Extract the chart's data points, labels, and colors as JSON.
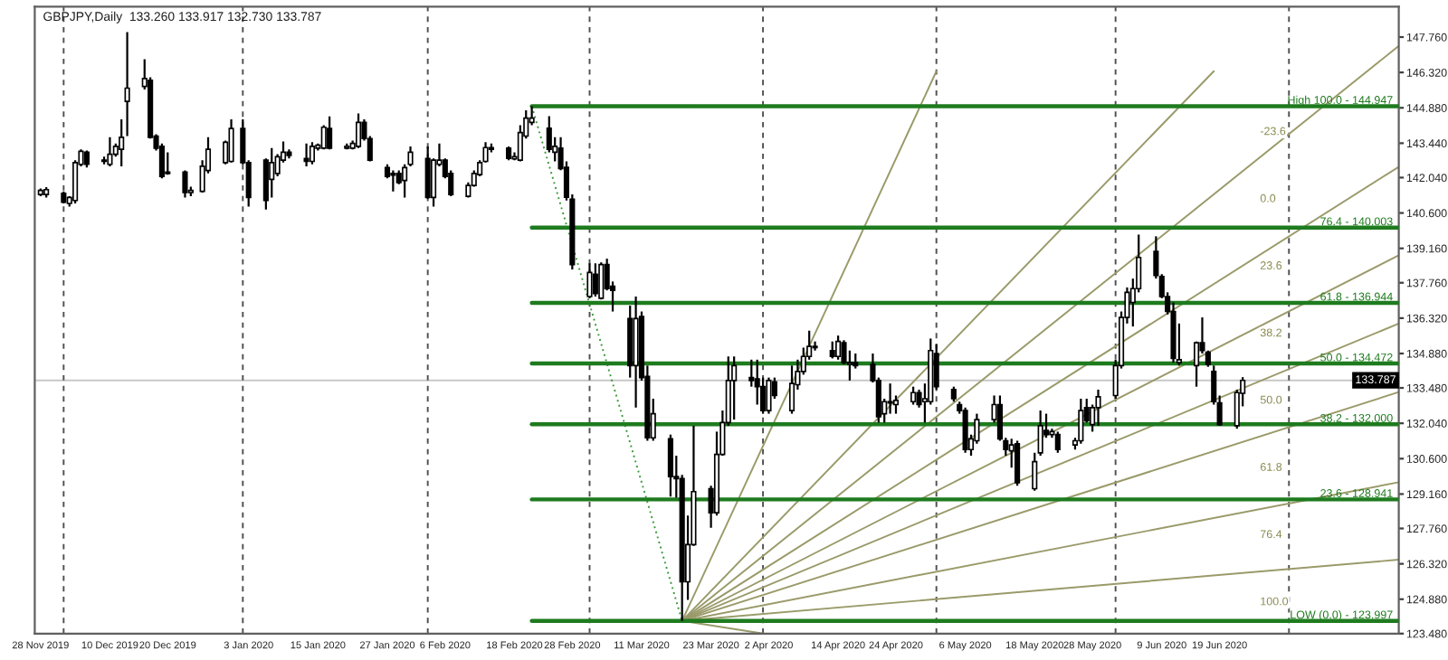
{
  "chart_data": {
    "type": "candlestick",
    "title": "GBPJPY,Daily  133.260 133.917 132.730 133.787",
    "color": "#000000",
    "x": [
      "2019-11-28",
      "2019-11-29",
      "2019-12-02",
      "2019-12-03",
      "2019-12-04",
      "2019-12-05",
      "2019-12-06",
      "2019-12-09",
      "2019-12-10",
      "2019-12-11",
      "2019-12-12",
      "2019-12-13",
      "2019-12-16",
      "2019-12-17",
      "2019-12-18",
      "2019-12-19",
      "2019-12-20",
      "2019-12-23",
      "2019-12-24",
      "2019-12-26",
      "2019-12-27",
      "2019-12-30",
      "2019-12-31",
      "2020-01-02",
      "2020-01-03",
      "2020-01-06",
      "2020-01-07",
      "2020-01-08",
      "2020-01-09",
      "2020-01-10",
      "2020-01-13",
      "2020-01-14",
      "2020-01-15",
      "2020-01-16",
      "2020-01-17",
      "2020-01-20",
      "2020-01-21",
      "2020-01-22",
      "2020-01-23",
      "2020-01-24",
      "2020-01-27",
      "2020-01-28",
      "2020-01-29",
      "2020-01-30",
      "2020-01-31",
      "2020-02-03",
      "2020-02-04",
      "2020-02-05",
      "2020-02-06",
      "2020-02-07",
      "2020-02-10",
      "2020-02-11",
      "2020-02-12",
      "2020-02-13",
      "2020-02-14",
      "2020-02-17",
      "2020-02-18",
      "2020-02-19",
      "2020-02-20",
      "2020-02-21",
      "2020-02-24",
      "2020-02-25",
      "2020-02-26",
      "2020-02-27",
      "2020-02-28",
      "2020-03-02",
      "2020-03-03",
      "2020-03-04",
      "2020-03-05",
      "2020-03-06",
      "2020-03-09",
      "2020-03-10",
      "2020-03-11",
      "2020-03-12",
      "2020-03-13",
      "2020-03-16",
      "2020-03-17",
      "2020-03-18",
      "2020-03-19",
      "2020-03-20",
      "2020-03-23",
      "2020-03-24",
      "2020-03-25",
      "2020-03-26",
      "2020-03-27",
      "2020-03-30",
      "2020-03-31",
      "2020-04-01",
      "2020-04-02",
      "2020-04-03",
      "2020-04-06",
      "2020-04-07",
      "2020-04-08",
      "2020-04-09",
      "2020-04-10",
      "2020-04-13",
      "2020-04-14",
      "2020-04-15",
      "2020-04-16",
      "2020-04-17",
      "2020-04-20",
      "2020-04-21",
      "2020-04-22",
      "2020-04-23",
      "2020-04-24",
      "2020-04-27",
      "2020-04-28",
      "2020-04-29",
      "2020-04-30",
      "2020-05-01",
      "2020-05-04",
      "2020-05-05",
      "2020-05-06",
      "2020-05-07",
      "2020-05-08",
      "2020-05-11",
      "2020-05-12",
      "2020-05-13",
      "2020-05-14",
      "2020-05-15",
      "2020-05-18",
      "2020-05-19",
      "2020-05-20",
      "2020-05-21",
      "2020-05-22",
      "2020-05-25",
      "2020-05-26",
      "2020-05-27",
      "2020-05-28",
      "2020-05-29",
      "2020-06-01",
      "2020-06-02",
      "2020-06-03",
      "2020-06-04",
      "2020-06-05",
      "2020-06-08",
      "2020-06-09",
      "2020-06-10",
      "2020-06-11",
      "2020-06-12",
      "2020-06-15",
      "2020-06-16",
      "2020-06-17",
      "2020-06-18",
      "2020-06-19",
      "2020-06-22",
      "2020-06-23"
    ],
    "ohlc": [
      [
        141.35,
        141.6,
        141.28,
        141.52
      ],
      [
        141.35,
        141.65,
        141.23,
        141.55
      ],
      [
        141.4,
        141.48,
        140.99,
        141.04
      ],
      [
        140.99,
        141.28,
        140.86,
        141.23
      ],
      [
        141.11,
        142.75,
        140.99,
        142.65
      ],
      [
        142.58,
        143.19,
        142.5,
        143.11
      ],
      [
        143.07,
        143.14,
        142.45,
        142.58
      ],
      [
        142.7,
        142.89,
        142.58,
        142.75
      ],
      [
        142.58,
        143.68,
        142.5,
        142.99
      ],
      [
        142.99,
        143.43,
        142.89,
        143.31
      ],
      [
        143.19,
        144.41,
        142.5,
        143.68
      ],
      [
        145.14,
        147.96,
        143.73,
        145.68
      ],
      [
        145.75,
        146.86,
        145.63,
        146.07
      ],
      [
        146.0,
        146.12,
        143.63,
        143.68
      ],
      [
        143.73,
        143.8,
        143.14,
        143.24
      ],
      [
        143.31,
        143.43,
        142.01,
        142.09
      ],
      [
        142.26,
        143.07,
        142.16,
        142.21
      ],
      [
        142.26,
        142.33,
        141.23,
        141.43
      ],
      [
        141.43,
        141.67,
        141.28,
        141.52
      ],
      [
        141.48,
        142.75,
        141.43,
        142.5
      ],
      [
        142.33,
        143.68,
        142.21,
        143.19
      ],
      [
        142.65,
        143.55,
        142.58,
        143.48
      ],
      [
        142.7,
        144.41,
        142.65,
        144.04
      ],
      [
        144.04,
        144.41,
        142.58,
        142.65
      ],
      [
        142.65,
        142.75,
        140.86,
        141.23
      ],
      [
        142.75,
        142.82,
        140.74,
        141.11
      ],
      [
        141.97,
        143.24,
        141.23,
        142.65
      ],
      [
        142.21,
        142.99,
        142.09,
        142.89
      ],
      [
        142.75,
        143.51,
        142.65,
        143.07
      ],
      [
        143.07,
        143.19,
        142.82,
        142.94
      ],
      [
        142.82,
        143.43,
        142.5,
        142.7
      ],
      [
        142.7,
        143.48,
        142.58,
        143.31
      ],
      [
        143.24,
        143.43,
        143.14,
        143.36
      ],
      [
        143.24,
        144.17,
        143.19,
        144.09
      ],
      [
        144.04,
        144.53,
        143.19,
        143.24
      ],
      [
        143.24,
        143.43,
        143.19,
        143.31
      ],
      [
        143.24,
        143.55,
        143.19,
        143.43
      ],
      [
        143.31,
        144.65,
        143.24,
        144.29
      ],
      [
        144.29,
        144.41,
        143.55,
        143.63
      ],
      [
        143.63,
        143.73,
        142.7,
        142.75
      ],
      [
        142.45,
        142.58,
        142.01,
        142.09
      ],
      [
        142.21,
        142.33,
        141.48,
        142.14
      ],
      [
        142.21,
        142.33,
        141.77,
        141.84
      ],
      [
        141.92,
        142.58,
        141.23,
        142.45
      ],
      [
        142.58,
        143.31,
        142.5,
        143.07
      ],
      [
        142.82,
        143.31,
        141.18,
        141.23
      ],
      [
        141.23,
        142.82,
        140.86,
        142.75
      ],
      [
        142.58,
        143.43,
        142.5,
        142.75
      ],
      [
        142.75,
        142.82,
        142.01,
        142.09
      ],
      [
        142.21,
        142.33,
        141.28,
        141.35
      ],
      [
        141.28,
        141.84,
        141.23,
        141.72
      ],
      [
        141.72,
        142.33,
        141.67,
        142.21
      ],
      [
        142.16,
        142.75,
        142.09,
        142.65
      ],
      [
        142.7,
        143.48,
        142.65,
        143.26
      ],
      [
        143.26,
        143.43,
        143.07,
        143.19
      ],
      [
        143.24,
        143.31,
        142.75,
        142.82
      ],
      [
        142.8,
        143.07,
        142.75,
        142.89
      ],
      [
        142.75,
        144.17,
        142.7,
        143.87
      ],
      [
        143.73,
        144.78,
        143.63,
        144.46
      ],
      [
        144.29,
        144.947,
        144.17,
        144.46
      ],
      [
        144.05,
        144.54,
        143.07,
        143.19
      ],
      [
        143.07,
        143.68,
        142.7,
        143.31
      ],
      [
        143.24,
        143.68,
        142.34,
        142.41
      ],
      [
        142.46,
        142.7,
        141.11,
        141.24
      ],
      [
        141.16,
        141.36,
        138.3,
        138.5
      ],
      [
        137.2,
        138.55,
        137.13,
        138.18
      ],
      [
        138.11,
        138.55,
        137.2,
        137.32
      ],
      [
        137.13,
        138.59,
        137.08,
        138.5
      ],
      [
        138.5,
        138.74,
        137.45,
        137.52
      ],
      [
        137.62,
        137.81,
        136.59,
        137.45
      ],
      [
        136.3,
        136.83,
        133.9,
        134.39
      ],
      [
        134.39,
        137.2,
        132.68,
        136.3
      ],
      [
        136.39,
        136.59,
        133.78,
        133.9
      ],
      [
        133.95,
        134.39,
        131.33,
        131.45
      ],
      [
        131.45,
        133.04,
        131.33,
        132.43
      ],
      [
        131.41,
        131.58,
        129.06,
        129.87
      ],
      [
        129.87,
        130.72,
        129.01,
        129.79
      ],
      [
        129.79,
        129.94,
        123.997,
        125.59
      ],
      [
        125.59,
        128.28,
        124.85,
        127.1
      ],
      [
        127.1,
        131.94,
        127.05,
        129.26
      ],
      [
        129.38,
        129.5,
        127.79,
        128.4
      ],
      [
        128.4,
        131.7,
        128.28,
        130.77
      ],
      [
        130.77,
        132.56,
        130.72,
        132.07
      ],
      [
        132.07,
        134.76,
        131.94,
        133.78
      ],
      [
        133.78,
        134.76,
        132.19,
        134.39
      ],
      [
        133.9,
        134.63,
        133.53,
        133.78
      ],
      [
        133.85,
        134.63,
        132.8,
        133.53
      ],
      [
        133.53,
        133.9,
        132.43,
        132.56
      ],
      [
        132.56,
        133.9,
        132.43,
        133.78
      ],
      [
        133.73,
        133.9,
        133.04,
        133.17
      ],
      [
        132.56,
        134.39,
        132.43,
        133.66
      ],
      [
        133.61,
        134.63,
        133.41,
        134.15
      ],
      [
        134.15,
        135.12,
        134.02,
        134.76
      ],
      [
        134.76,
        135.81,
        134.63,
        135.17
      ],
      [
        135.17,
        135.37,
        135.0,
        135.12
      ],
      [
        135.0,
        135.37,
        134.68,
        134.76
      ],
      [
        134.76,
        135.61,
        134.63,
        135.37
      ],
      [
        135.32,
        135.42,
        134.44,
        134.51
      ],
      [
        134.44,
        135.0,
        133.78,
        134.51
      ],
      [
        134.51,
        134.88,
        134.27,
        134.39
      ],
      [
        134.44,
        134.88,
        133.7,
        133.78
      ],
      [
        133.78,
        133.9,
        132.07,
        132.31
      ],
      [
        132.43,
        133.04,
        132.07,
        132.92
      ],
      [
        132.92,
        133.66,
        132.43,
        132.87
      ],
      [
        132.8,
        133.17,
        132.43,
        132.97
      ],
      [
        132.92,
        133.53,
        132.8,
        133.29
      ],
      [
        133.29,
        133.41,
        132.68,
        132.8
      ],
      [
        132.92,
        133.66,
        132.07,
        133.04
      ],
      [
        132.92,
        135.49,
        132.8,
        135.0
      ],
      [
        134.88,
        135.25,
        133.41,
        133.53
      ],
      [
        133.41,
        133.53,
        132.92,
        133.04
      ],
      [
        132.8,
        132.92,
        132.43,
        132.56
      ],
      [
        132.56,
        132.68,
        130.84,
        130.97
      ],
      [
        130.97,
        131.58,
        130.72,
        131.41
      ],
      [
        131.33,
        132.43,
        131.21,
        132.19
      ],
      [
        132.19,
        133.17,
        132.07,
        132.8
      ],
      [
        132.8,
        133.17,
        131.33,
        131.41
      ],
      [
        131.33,
        131.45,
        130.72,
        130.97
      ],
      [
        130.92,
        131.41,
        130.23,
        131.16
      ],
      [
        131.21,
        131.33,
        129.5,
        129.62
      ],
      [
        129.38,
        130.84,
        129.3,
        130.48
      ],
      [
        130.84,
        132.56,
        130.72,
        131.94
      ],
      [
        131.75,
        132.43,
        131.45,
        131.58
      ],
      [
        131.58,
        131.82,
        131.45,
        131.7
      ],
      [
        131.58,
        131.7,
        130.84,
        130.97
      ],
      [
        131.16,
        131.45,
        130.97,
        131.33
      ],
      [
        131.33,
        133.04,
        131.21,
        132.56
      ],
      [
        132.68,
        133.04,
        132.07,
        132.14
      ],
      [
        131.99,
        132.8,
        131.7,
        132.68
      ],
      [
        132.68,
        133.41,
        131.94,
        133.12
      ],
      [
        133.17,
        134.63,
        133.04,
        134.39
      ],
      [
        134.39,
        136.59,
        134.27,
        136.35
      ],
      [
        136.35,
        137.57,
        136.1,
        137.37
      ],
      [
        136.96,
        137.93,
        135.98,
        137.52
      ],
      [
        137.52,
        139.72,
        137.37,
        138.79
      ],
      [
        139.04,
        139.65,
        137.93,
        138.06
      ],
      [
        138.01,
        138.11,
        137.13,
        137.2
      ],
      [
        137.2,
        137.37,
        136.47,
        136.59
      ],
      [
        136.59,
        136.96,
        134.51,
        134.68
      ],
      [
        134.51,
        136.1,
        134.39,
        134.63
      ],
      [
        134.39,
        135.37,
        133.53,
        135.32
      ],
      [
        135.32,
        136.35,
        134.88,
        135.0
      ],
      [
        134.93,
        135.0,
        134.34,
        134.44
      ],
      [
        134.15,
        134.39,
        132.8,
        132.92
      ],
      [
        132.87,
        133.17,
        131.94,
        131.99
      ],
      [
        131.94,
        133.41,
        131.82,
        133.29
      ],
      [
        133.26,
        133.917,
        132.73,
        133.787
      ]
    ],
    "series": [
      {
        "type": "line",
        "name": "High 100.0 - 144.947",
        "color": "#1e7b1e",
        "x": [
          "2020-02-21",
          "2020-07-20"
        ],
        "values": [
          144.947,
          144.947
        ]
      },
      {
        "type": "line",
        "name": "76.4 - 140.003",
        "color": "#1e7b1e",
        "x": [
          "2020-02-21",
          "2020-07-20"
        ],
        "values": [
          140.003,
          140.003
        ]
      },
      {
        "type": "line",
        "name": "61.8 - 136.944",
        "color": "#1e7b1e",
        "x": [
          "2020-02-21",
          "2020-07-20"
        ],
        "values": [
          136.944,
          136.944
        ]
      },
      {
        "type": "line",
        "name": "50.0 - 134.472",
        "color": "#1e7b1e",
        "x": [
          "2020-02-21",
          "2020-07-20"
        ],
        "values": [
          134.472,
          134.472
        ]
      },
      {
        "type": "line",
        "name": "38.2 - 132.000",
        "color": "#1e7b1e",
        "x": [
          "2020-02-21",
          "2020-07-20"
        ],
        "values": [
          132.0,
          132.0
        ]
      },
      {
        "type": "line",
        "name": "23.6 - 128.941",
        "color": "#1e7b1e",
        "x": [
          "2020-02-21",
          "2020-07-20"
        ],
        "values": [
          128.941,
          128.941
        ]
      },
      {
        "type": "line",
        "name": "LOW (0.0) - 123.997",
        "color": "#1e7b1e",
        "x": [
          "2020-02-21",
          "2020-07-20"
        ],
        "values": [
          123.997,
          123.997
        ]
      },
      {
        "type": "line",
        "color": "#3c9c3c",
        "line_style": "dotted",
        "x": [
          "2020-02-21",
          "2020-03-18"
        ],
        "values": [
          144.947,
          123.997
        ]
      },
      {
        "type": "line",
        "color": "#9a9a6a",
        "x": [
          "2020-03-18",
          "2020-05-01"
        ],
        "values": [
          123.997,
          146.37
        ]
      },
      {
        "type": "line",
        "color": "#9a9a6a",
        "x": [
          "2020-03-18",
          "2020-06-18"
        ],
        "values": [
          123.997,
          146.37
        ]
      },
      {
        "type": "line",
        "color": "#9a9a6a",
        "x": [
          "2020-03-18",
          "2020-07-20"
        ],
        "values": [
          123.997,
          147.4
        ]
      },
      {
        "type": "line",
        "color": "#9a9a6a",
        "x": [
          "2020-03-18",
          "2020-07-20"
        ],
        "values": [
          123.997,
          142.48
        ]
      },
      {
        "type": "line",
        "color": "#9a9a6a",
        "x": [
          "2020-03-18",
          "2020-07-20"
        ],
        "values": [
          123.997,
          138.88
        ]
      },
      {
        "type": "line",
        "color": "#9a9a6a",
        "x": [
          "2020-03-18",
          "2020-07-20"
        ],
        "values": [
          123.997,
          136.1
        ]
      },
      {
        "type": "line",
        "color": "#9a9a6a",
        "x": [
          "2020-03-18",
          "2020-07-20"
        ],
        "values": [
          123.997,
          133.31
        ]
      },
      {
        "type": "line",
        "color": "#9a9a6a",
        "x": [
          "2020-03-18",
          "2020-07-20"
        ],
        "values": [
          123.997,
          129.64
        ]
      },
      {
        "type": "line",
        "color": "#9a9a6a",
        "x": [
          "2020-03-18",
          "2020-07-20"
        ],
        "values": [
          123.997,
          126.49
        ]
      },
      {
        "type": "line",
        "color": "#9a9a6a",
        "x": [
          "2020-03-18",
          "2020-04-01"
        ],
        "values": [
          123.997,
          123.48
        ]
      }
    ],
    "annotations": [
      "-23.6",
      "0.0",
      "23.6",
      "38.2",
      "50.0",
      "61.8",
      "76.4",
      "100.0"
    ],
    "ref_lines": [
      {
        "axis": "y",
        "value": 133.787,
        "label": "133.787",
        "color": "#c8c8c8"
      },
      {
        "axis": "x",
        "value": "2019-12-02",
        "color": "#505050",
        "line_style": "dashed"
      },
      {
        "axis": "x",
        "value": "2020-01-02",
        "color": "#505050",
        "line_style": "dashed"
      },
      {
        "axis": "x",
        "value": "2020-02-03",
        "color": "#505050",
        "line_style": "dashed"
      },
      {
        "axis": "x",
        "value": "2020-03-02",
        "color": "#505050",
        "line_style": "dashed"
      },
      {
        "axis": "x",
        "value": "2020-04-01",
        "color": "#505050",
        "line_style": "dashed"
      },
      {
        "axis": "x",
        "value": "2020-05-01",
        "color": "#505050",
        "line_style": "dashed"
      },
      {
        "axis": "x",
        "value": "2020-06-01",
        "color": "#505050",
        "line_style": "dashed"
      },
      {
        "axis": "x",
        "value": "2020-07-01",
        "color": "#505050",
        "line_style": "dashed"
      }
    ],
    "xlim": [
      "2019-11-27",
      "2020-07-20"
    ],
    "ylim": [
      123.48,
      149.0
    ],
    "xticks": [
      {
        "value": "2019-11-28",
        "label": "28 Nov 2019"
      },
      {
        "value": "2019-12-10",
        "label": "10 Dec 2019"
      },
      {
        "value": "2019-12-20",
        "label": "20 Dec 2019"
      },
      {
        "value": "2020-01-03",
        "label": "3 Jan 2020"
      },
      {
        "value": "2020-01-15",
        "label": "15 Jan 2020"
      },
      {
        "value": "2020-01-27",
        "label": "27 Jan 2020"
      },
      {
        "value": "2020-02-06",
        "label": "6 Feb 2020"
      },
      {
        "value": "2020-02-18",
        "label": "18 Feb 2020"
      },
      {
        "value": "2020-02-28",
        "label": "28 Feb 2020"
      },
      {
        "value": "2020-03-11",
        "label": "11 Mar 2020"
      },
      {
        "value": "2020-03-23",
        "label": "23 Mar 2020"
      },
      {
        "value": "2020-04-02",
        "label": "2 Apr 2020"
      },
      {
        "value": "2020-04-14",
        "label": "14 Apr 2020"
      },
      {
        "value": "2020-04-24",
        "label": "24 Apr 2020"
      },
      {
        "value": "2020-05-06",
        "label": "6 May 2020"
      },
      {
        "value": "2020-05-18",
        "label": "18 May 2020"
      },
      {
        "value": "2020-05-28",
        "label": "28 May 2020"
      },
      {
        "value": "2020-06-09",
        "label": "9 Jun 2020"
      },
      {
        "value": "2020-06-19",
        "label": "19 Jun 2020"
      }
    ],
    "yticks": [
      {
        "value": 123.48,
        "label": "123.480"
      },
      {
        "value": 124.88,
        "label": "124.880"
      },
      {
        "value": 126.32,
        "label": "126.320"
      },
      {
        "value": 127.76,
        "label": "127.760"
      },
      {
        "value": 129.16,
        "label": "129.160"
      },
      {
        "value": 130.6,
        "label": "130.600"
      },
      {
        "value": 132.04,
        "label": "132.040"
      },
      {
        "value": 133.48,
        "label": "133.480"
      },
      {
        "value": 134.88,
        "label": "134.880"
      },
      {
        "value": 136.32,
        "label": "136.320"
      },
      {
        "value": 137.76,
        "label": "137.760"
      },
      {
        "value": 139.16,
        "label": "139.160"
      },
      {
        "value": 140.6,
        "label": "140.600"
      },
      {
        "value": 142.04,
        "label": "142.040"
      },
      {
        "value": 143.44,
        "label": "143.440"
      },
      {
        "value": 144.88,
        "label": "144.880"
      },
      {
        "value": 146.32,
        "label": "146.320"
      },
      {
        "value": 147.76,
        "label": "147.760"
      }
    ]
  }
}
